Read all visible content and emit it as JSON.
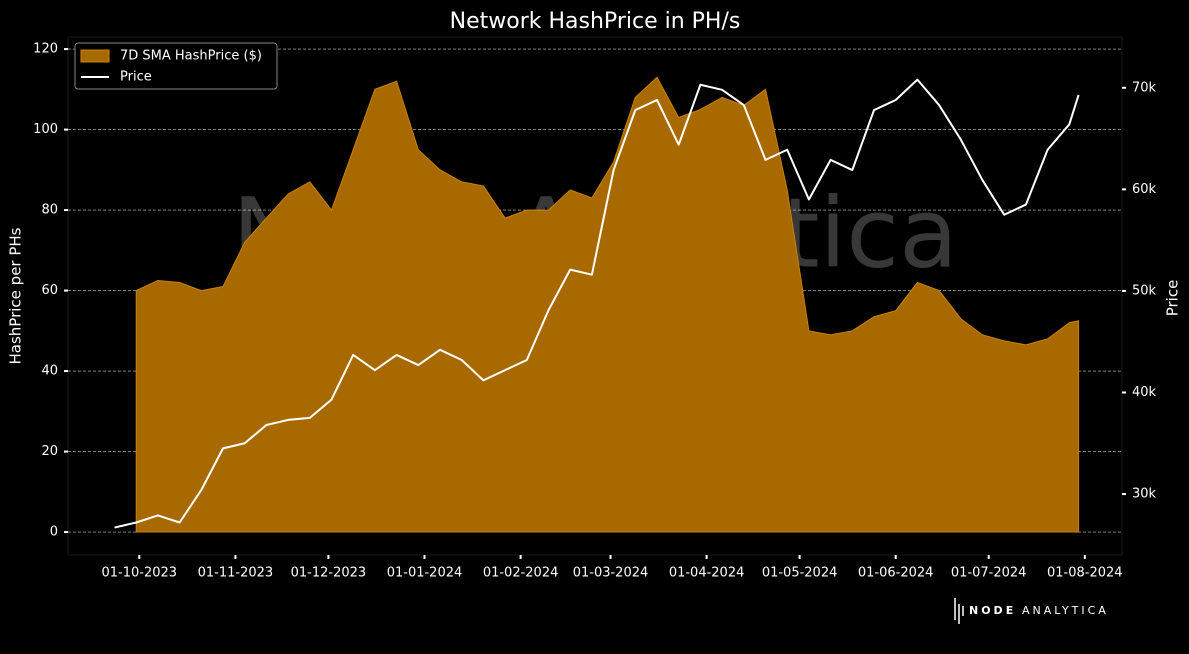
{
  "chart_data": {
    "type": "area_line",
    "title": "Network HashPrice in PH/s",
    "ylabel": "HashPrice per PHs",
    "y2label": "Price",
    "watermark": "Node Analytica",
    "logo": {
      "bold": "NODE",
      "light": "ANALYTICA"
    },
    "legend": "upper left",
    "grid": true,
    "x": [
      "2023-09-23",
      "2023-09-30",
      "2023-10-07",
      "2023-10-14",
      "2023-10-21",
      "2023-10-28",
      "2023-11-04",
      "2023-11-11",
      "2023-11-18",
      "2023-11-25",
      "2023-12-02",
      "2023-12-09",
      "2023-12-16",
      "2023-12-23",
      "2023-12-30",
      "2024-01-06",
      "2024-01-13",
      "2024-01-20",
      "2024-01-27",
      "2024-02-03",
      "2024-02-10",
      "2024-02-17",
      "2024-02-24",
      "2024-03-02",
      "2024-03-09",
      "2024-03-16",
      "2024-03-23",
      "2024-03-30",
      "2024-04-06",
      "2024-04-13",
      "2024-04-20",
      "2024-04-27",
      "2024-05-04",
      "2024-05-11",
      "2024-05-18",
      "2024-05-25",
      "2024-06-01",
      "2024-06-08",
      "2024-06-15",
      "2024-06-22",
      "2024-06-29",
      "2024-07-06",
      "2024-07-13",
      "2024-07-20",
      "2024-07-27",
      "2024-07-30"
    ],
    "xlim": [
      "2023-09-08",
      "2024-08-13"
    ],
    "xticks": [
      {
        "value": "2023-10-01",
        "label": "01-10-2023"
      },
      {
        "value": "2023-11-01",
        "label": "01-11-2023"
      },
      {
        "value": "2023-12-01",
        "label": "01-12-2023"
      },
      {
        "value": "2024-01-01",
        "label": "01-01-2024"
      },
      {
        "value": "2024-02-01",
        "label": "01-02-2024"
      },
      {
        "value": "2024-03-01",
        "label": "01-03-2024"
      },
      {
        "value": "2024-04-01",
        "label": "01-04-2024"
      },
      {
        "value": "2024-05-01",
        "label": "01-05-2024"
      },
      {
        "value": "2024-06-01",
        "label": "01-06-2024"
      },
      {
        "value": "2024-07-01",
        "label": "01-07-2024"
      },
      {
        "value": "2024-08-01",
        "label": "01-08-2024"
      }
    ],
    "ylim": [
      -5.7,
      123
    ],
    "yticks": [
      0,
      20,
      40,
      60,
      80,
      100,
      120
    ],
    "y2lim": [
      24000,
      75000
    ],
    "y2ticks": [
      {
        "value": 30000,
        "label": "30k"
      },
      {
        "value": 40000,
        "label": "40k"
      },
      {
        "value": 50000,
        "label": "50k"
      },
      {
        "value": 60000,
        "label": "60k"
      },
      {
        "value": 70000,
        "label": "70k"
      }
    ],
    "series": [
      {
        "name": "7D SMA HashPrice ($)",
        "kind": "area",
        "color": "#a86a00",
        "values": [
          null,
          60,
          62.5,
          62,
          60,
          61,
          72,
          78,
          84,
          87,
          80,
          95,
          110,
          112,
          95,
          90,
          87,
          86,
          78,
          80,
          80,
          85,
          83,
          92,
          108,
          113,
          103,
          105,
          108,
          106,
          110,
          85,
          50,
          49,
          50,
          53.5,
          55,
          62,
          60,
          53,
          49,
          47.5,
          46.5,
          48,
          52,
          52.5
        ]
      },
      {
        "name": "Price",
        "kind": "line",
        "color": "#ffffff",
        "axis": "y2",
        "values": [
          26700,
          27200,
          27900,
          27200,
          30400,
          34500,
          35000,
          36800,
          37300,
          37500,
          39300,
          43700,
          42200,
          43700,
          42700,
          44200,
          43200,
          41200,
          42200,
          43200,
          48100,
          52100,
          51600,
          61900,
          67800,
          68800,
          64400,
          70300,
          69800,
          68300,
          62900,
          63900,
          59000,
          62900,
          61900,
          67800,
          68800,
          70800,
          68300,
          64900,
          60900,
          57500,
          58500,
          63900,
          66400,
          69300
        ]
      }
    ]
  }
}
